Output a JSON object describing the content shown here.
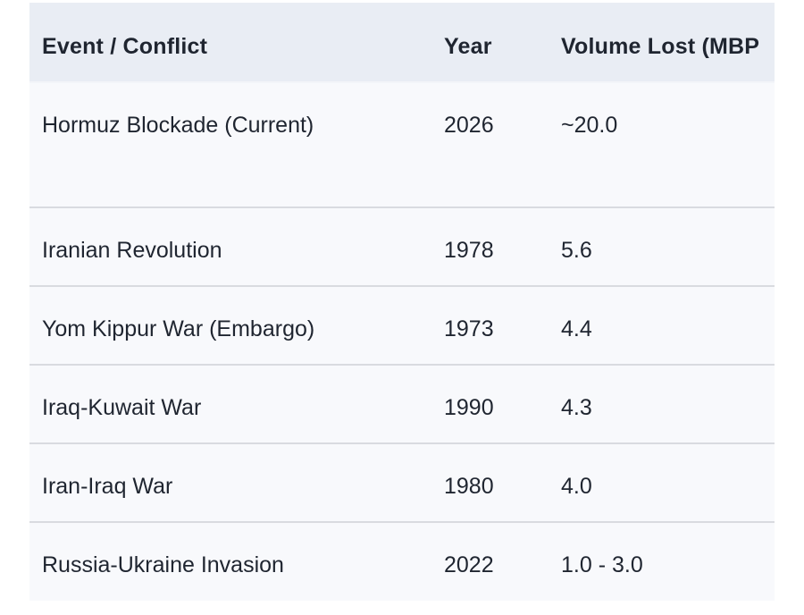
{
  "chart_data": {
    "type": "table",
    "columns": [
      {
        "key": "event",
        "label": "Event / Conflict"
      },
      {
        "key": "year",
        "label": "Year"
      },
      {
        "key": "volume",
        "label": "Volume Lost (MBP"
      }
    ],
    "rows": [
      {
        "event": "Hormuz Blockade (Current)",
        "year": "2026",
        "volume": "~20.0"
      },
      {
        "event": "Iranian Revolution",
        "year": "1978",
        "volume": "5.6"
      },
      {
        "event": "Yom Kippur War (Embargo)",
        "year": "1973",
        "volume": "4.4"
      },
      {
        "event": "Iraq-Kuwait War",
        "year": "1990",
        "volume": "4.3"
      },
      {
        "event": "Iran-Iraq War",
        "year": "1980",
        "volume": "4.0"
      },
      {
        "event": "Russia-Ukraine Invasion",
        "year": "2022",
        "volume": "1.0 - 3.0"
      }
    ],
    "layout_hints": {
      "grid": "horizontal-dividers-only",
      "header_row": true,
      "third_column_clipped_at_right_edge": true
    }
  },
  "colors": {
    "page_bg": "#ffffff",
    "header_bg": "#e9edf4",
    "row_bg": "#f8f9fc",
    "divider": "#d9dbe0",
    "header_divider": "#f3f5f9",
    "text": "#1f2530"
  }
}
